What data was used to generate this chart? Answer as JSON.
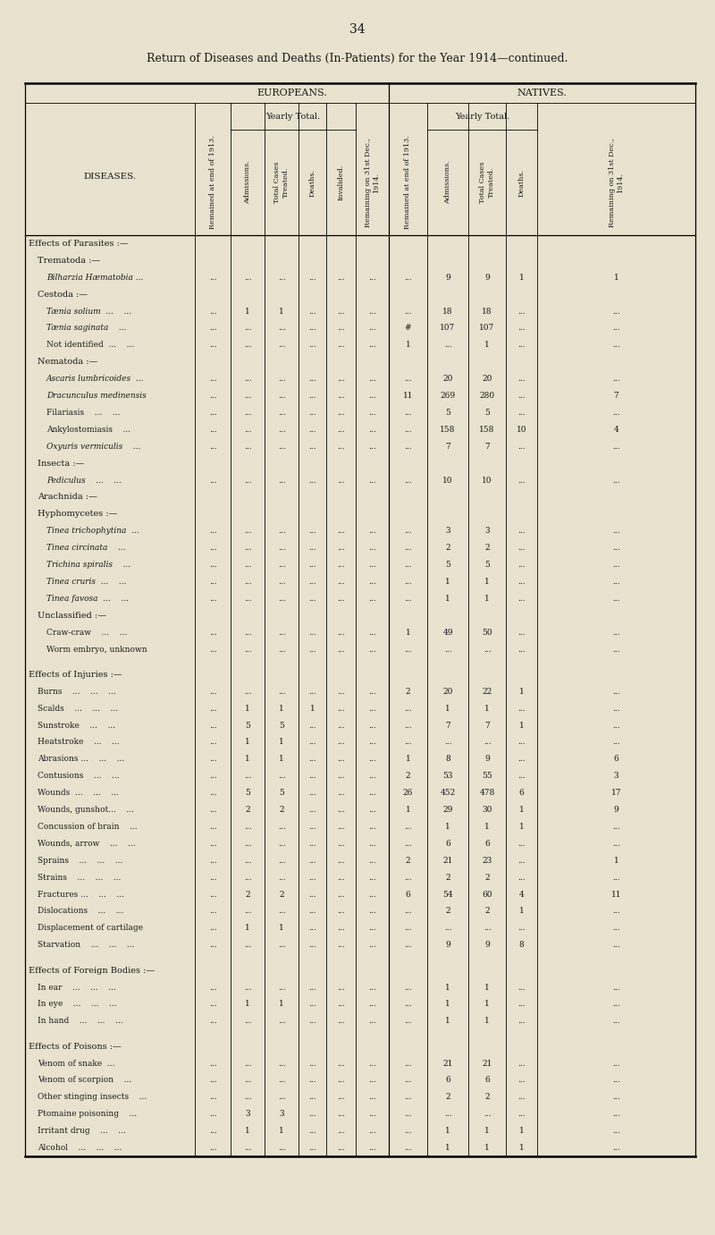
{
  "page_number": "34",
  "title": "Return of Diseases and Deaths (In-Patients) for the Year 1914—continued.",
  "bg_color": "#e8e2ce",
  "text_color": "#1a1a1a",
  "rows": [
    {
      "label": "Effects of Parasites :—",
      "indent": 0,
      "italic": false,
      "category": true,
      "spacer": false,
      "data": [
        "",
        "",
        "",
        "",
        "",
        "",
        "",
        "",
        "",
        "",
        ""
      ]
    },
    {
      "label": "Trematoda :—",
      "indent": 1,
      "italic": false,
      "category": true,
      "spacer": false,
      "data": [
        "",
        "",
        "",
        "",
        "",
        "",
        "",
        "",
        "",
        "",
        ""
      ]
    },
    {
      "label": "Bilharzia Hæmatobia ...",
      "indent": 2,
      "italic": true,
      "category": false,
      "spacer": false,
      "data": [
        "...",
        "...",
        "...",
        "...",
        "...",
        "...",
        "...",
        "9",
        "9",
        "1",
        "1"
      ]
    },
    {
      "label": "Cestoda :—",
      "indent": 1,
      "italic": false,
      "category": true,
      "spacer": false,
      "data": [
        "",
        "",
        "",
        "",
        "",
        "",
        "",
        "",
        "",
        "",
        ""
      ]
    },
    {
      "label": "Tænia solium  ...    ...",
      "indent": 2,
      "italic": true,
      "category": false,
      "spacer": false,
      "data": [
        "...",
        "1",
        "1",
        "...",
        "...",
        "...",
        "...",
        "18",
        "18",
        "...",
        "..."
      ]
    },
    {
      "label": "Tænia saginata    ...",
      "indent": 2,
      "italic": true,
      "category": false,
      "spacer": false,
      "data": [
        "...",
        "...",
        "...",
        "...",
        "...",
        "...",
        "#",
        "107",
        "107",
        "...",
        "..."
      ]
    },
    {
      "label": "Not identified  ...    ...",
      "indent": 2,
      "italic": false,
      "category": false,
      "spacer": false,
      "data": [
        "...",
        "...",
        "...",
        "...",
        "...",
        "...",
        "1",
        "...",
        "1",
        "...",
        "..."
      ]
    },
    {
      "label": "Nematoda :—",
      "indent": 1,
      "italic": false,
      "category": true,
      "spacer": false,
      "data": [
        "",
        "",
        "",
        "",
        "",
        "",
        "",
        "",
        "",
        "",
        ""
      ]
    },
    {
      "label": "Ascaris lumbricoides  ...",
      "indent": 2,
      "italic": true,
      "category": false,
      "spacer": false,
      "data": [
        "...",
        "...",
        "...",
        "...",
        "...",
        "...",
        "...",
        "20",
        "20",
        "...",
        "..."
      ]
    },
    {
      "label": "Dracunculus medinensis",
      "indent": 2,
      "italic": true,
      "category": false,
      "spacer": false,
      "data": [
        "...",
        "...",
        "...",
        "...",
        "...",
        "...",
        "11",
        "269",
        "280",
        "...",
        "7"
      ]
    },
    {
      "label": "Filariasis    ...    ...",
      "indent": 2,
      "italic": false,
      "category": false,
      "spacer": false,
      "data": [
        "...",
        "...",
        "...",
        "...",
        "...",
        "...",
        "...",
        "5",
        "5",
        "...",
        "..."
      ]
    },
    {
      "label": "Ankylostomiasis    ...",
      "indent": 2,
      "italic": false,
      "category": false,
      "spacer": false,
      "data": [
        "...",
        "...",
        "...",
        "...",
        "...",
        "...",
        "...",
        "158",
        "158",
        "10",
        "4"
      ]
    },
    {
      "label": "Oxyuris vermiculis    ...",
      "indent": 2,
      "italic": true,
      "category": false,
      "spacer": false,
      "data": [
        "...",
        "...",
        "...",
        "...",
        "...",
        "...",
        "...",
        "7",
        "7",
        "...",
        "..."
      ]
    },
    {
      "label": "Insecta :—",
      "indent": 1,
      "italic": false,
      "category": true,
      "spacer": false,
      "data": [
        "",
        "",
        "",
        "",
        "",
        "",
        "",
        "",
        "",
        "",
        ""
      ]
    },
    {
      "label": "Pediculus    ...    ...",
      "indent": 2,
      "italic": true,
      "category": false,
      "spacer": false,
      "data": [
        "...",
        "...",
        "...",
        "...",
        "...",
        "...",
        "...",
        "10",
        "10",
        "...",
        "..."
      ]
    },
    {
      "label": "Arachnida :—",
      "indent": 1,
      "italic": false,
      "category": true,
      "spacer": false,
      "data": [
        "",
        "",
        "",
        "",
        "",
        "",
        "",
        "",
        "",
        "",
        ""
      ]
    },
    {
      "label": "Hyphomycetes :—",
      "indent": 1,
      "italic": false,
      "category": true,
      "spacer": false,
      "data": [
        "",
        "",
        "",
        "",
        "",
        "",
        "",
        "",
        "",
        "",
        ""
      ]
    },
    {
      "label": "Tinea trichophytina  ...",
      "indent": 2,
      "italic": true,
      "category": false,
      "spacer": false,
      "data": [
        "...",
        "...",
        "...",
        "...",
        "...",
        "...",
        "...",
        "3",
        "3",
        "...",
        "..."
      ]
    },
    {
      "label": "Tinea circinata    ...",
      "indent": 2,
      "italic": true,
      "category": false,
      "spacer": false,
      "data": [
        "...",
        "...",
        "...",
        "...",
        "...",
        "...",
        "...",
        "2",
        "2",
        "...",
        "..."
      ]
    },
    {
      "label": "Trichina spiralis    ...",
      "indent": 2,
      "italic": true,
      "category": false,
      "spacer": false,
      "data": [
        "...",
        "...",
        "...",
        "...",
        "...",
        "...",
        "...",
        "5",
        "5",
        "...",
        "..."
      ]
    },
    {
      "label": "Tinea cruris  ...    ...",
      "indent": 2,
      "italic": true,
      "category": false,
      "spacer": false,
      "data": [
        "...",
        "...",
        "...",
        "...",
        "...",
        "...",
        "...",
        "1",
        "1",
        "...",
        "..."
      ]
    },
    {
      "label": "Tinea favosa  ...    ...",
      "indent": 2,
      "italic": true,
      "category": false,
      "spacer": false,
      "data": [
        "...",
        "...",
        "...",
        "...",
        "...",
        "...",
        "...",
        "1",
        "1",
        "...",
        "..."
      ]
    },
    {
      "label": "Unclassified :—",
      "indent": 1,
      "italic": false,
      "category": true,
      "spacer": false,
      "data": [
        "",
        "",
        "",
        "",
        "",
        "",
        "",
        "",
        "",
        "",
        ""
      ]
    },
    {
      "label": "Craw-craw    ...    ...",
      "indent": 2,
      "italic": false,
      "category": false,
      "spacer": false,
      "data": [
        "...",
        "...",
        "...",
        "...",
        "...",
        "...",
        "1",
        "49",
        "50",
        "...",
        "..."
      ]
    },
    {
      "label": "Worm embryo, unknown",
      "indent": 2,
      "italic": false,
      "category": false,
      "spacer": false,
      "data": [
        "...",
        "...",
        "...",
        "...",
        "...",
        "...",
        "...",
        "...",
        "...",
        "...",
        "..."
      ]
    },
    {
      "label": "",
      "indent": 0,
      "italic": false,
      "category": false,
      "spacer": true,
      "data": [
        "",
        "",
        "",
        "",
        "",
        "",
        "",
        "",
        "",
        "",
        ""
      ]
    },
    {
      "label": "Effects of Injuries :—",
      "indent": 0,
      "italic": false,
      "category": true,
      "spacer": false,
      "data": [
        "",
        "",
        "",
        "",
        "",
        "",
        "",
        "",
        "",
        "",
        ""
      ]
    },
    {
      "label": "Burns    ...    ...    ...",
      "indent": 1,
      "italic": false,
      "category": false,
      "spacer": false,
      "data": [
        "...",
        "...",
        "...",
        "...",
        "...",
        "...",
        "2",
        "20",
        "22",
        "1",
        "..."
      ]
    },
    {
      "label": "Scalds    ...    ...    ...",
      "indent": 1,
      "italic": false,
      "category": false,
      "spacer": false,
      "data": [
        "...",
        "1",
        "1",
        "1",
        "...",
        "...",
        "...",
        "1",
        "1",
        "...",
        "..."
      ]
    },
    {
      "label": "Sunstroke    ...    ...",
      "indent": 1,
      "italic": false,
      "category": false,
      "spacer": false,
      "data": [
        "...",
        "5",
        "5",
        "...",
        "...",
        "...",
        "...",
        "7",
        "7",
        "1",
        "..."
      ]
    },
    {
      "label": "Heatstroke    ...    ...",
      "indent": 1,
      "italic": false,
      "category": false,
      "spacer": false,
      "data": [
        "...",
        "1",
        "1",
        "...",
        "...",
        "...",
        "...",
        "...",
        "...",
        "...",
        "..."
      ]
    },
    {
      "label": "Abrasions ...    ...    ...",
      "indent": 1,
      "italic": false,
      "category": false,
      "spacer": false,
      "data": [
        "...",
        "1",
        "1",
        "...",
        "...",
        "...",
        "1",
        "8",
        "9",
        "...",
        "6"
      ]
    },
    {
      "label": "Contusions    ...    ...",
      "indent": 1,
      "italic": false,
      "category": false,
      "spacer": false,
      "data": [
        "...",
        "...",
        "...",
        "...",
        "...",
        "...",
        "2",
        "53",
        "55",
        "...",
        "3"
      ]
    },
    {
      "label": "Wounds  ...    ...    ...",
      "indent": 1,
      "italic": false,
      "category": false,
      "spacer": false,
      "data": [
        "...",
        "5",
        "5",
        "...",
        "...",
        "...",
        "26",
        "452",
        "478",
        "6",
        "17"
      ]
    },
    {
      "label": "Wounds, gunshot...    ...",
      "indent": 1,
      "italic": false,
      "category": false,
      "spacer": false,
      "data": [
        "...",
        "2",
        "2",
        "...",
        "...",
        "...",
        "1",
        "29",
        "30",
        "1",
        "9"
      ]
    },
    {
      "label": "Concussion of brain    ...",
      "indent": 1,
      "italic": false,
      "category": false,
      "spacer": false,
      "data": [
        "...",
        "...",
        "...",
        "...",
        "...",
        "...",
        "...",
        "1",
        "1",
        "1",
        "..."
      ]
    },
    {
      "label": "Wounds, arrow    ...    ...",
      "indent": 1,
      "italic": false,
      "category": false,
      "spacer": false,
      "data": [
        "...",
        "...",
        "...",
        "...",
        "...",
        "...",
        "...",
        "6",
        "6",
        "...",
        "..."
      ]
    },
    {
      "label": "Sprains    ...    ...    ...",
      "indent": 1,
      "italic": false,
      "category": false,
      "spacer": false,
      "data": [
        "...",
        "...",
        "...",
        "...",
        "...",
        "...",
        "2",
        "21",
        "23",
        "...",
        "1"
      ]
    },
    {
      "label": "Strains    ...    ...    ...",
      "indent": 1,
      "italic": false,
      "category": false,
      "spacer": false,
      "data": [
        "...",
        "...",
        "...",
        "...",
        "...",
        "...",
        "...",
        "2",
        "2",
        "...",
        "..."
      ]
    },
    {
      "label": "Fractures ...    ...    ...",
      "indent": 1,
      "italic": false,
      "category": false,
      "spacer": false,
      "data": [
        "...",
        "2",
        "2",
        "...",
        "...",
        "...",
        "6",
        "54",
        "60",
        "4",
        "11"
      ]
    },
    {
      "label": "Dislocations    ...    ...",
      "indent": 1,
      "italic": false,
      "category": false,
      "spacer": false,
      "data": [
        "...",
        "...",
        "...",
        "...",
        "...",
        "...",
        "...",
        "2",
        "2",
        "1",
        "..."
      ]
    },
    {
      "label": "Displacement of cartilage",
      "indent": 1,
      "italic": false,
      "category": false,
      "spacer": false,
      "data": [
        "...",
        "1",
        "1",
        "...",
        "...",
        "...",
        "...",
        "...",
        "...",
        "...",
        "..."
      ]
    },
    {
      "label": "Starvation    ...    ...    ...",
      "indent": 1,
      "italic": false,
      "category": false,
      "spacer": false,
      "data": [
        "...",
        "...",
        "...",
        "...",
        "...",
        "...",
        "...",
        "9",
        "9",
        "8",
        "..."
      ]
    },
    {
      "label": "",
      "indent": 0,
      "italic": false,
      "category": false,
      "spacer": true,
      "data": [
        "",
        "",
        "",
        "",
        "",
        "",
        "",
        "",
        "",
        "",
        ""
      ]
    },
    {
      "label": "Effects of Foreign Bodies :—",
      "indent": 0,
      "italic": false,
      "category": true,
      "spacer": false,
      "data": [
        "",
        "",
        "",
        "",
        "",
        "",
        "",
        "",
        "",
        "",
        ""
      ]
    },
    {
      "label": "In ear    ...    ...    ...",
      "indent": 1,
      "italic": false,
      "category": false,
      "spacer": false,
      "data": [
        "...",
        "...",
        "...",
        "...",
        "...",
        "...",
        "...",
        "1",
        "1",
        "...",
        "..."
      ]
    },
    {
      "label": "In eye    ...    ...    ...",
      "indent": 1,
      "italic": false,
      "category": false,
      "spacer": false,
      "data": [
        "...",
        "1",
        "1",
        "...",
        "...",
        "...",
        "...",
        "1",
        "1",
        "...",
        "..."
      ]
    },
    {
      "label": "In hand    ...    ...    ...",
      "indent": 1,
      "italic": false,
      "category": false,
      "spacer": false,
      "data": [
        "...",
        "...",
        "...",
        "...",
        "...",
        "...",
        "...",
        "1",
        "1",
        "...",
        "..."
      ]
    },
    {
      "label": "",
      "indent": 0,
      "italic": false,
      "category": false,
      "spacer": true,
      "data": [
        "",
        "",
        "",
        "",
        "",
        "",
        "",
        "",
        "",
        "",
        ""
      ]
    },
    {
      "label": "Effects of Poisons :—",
      "indent": 0,
      "italic": false,
      "category": true,
      "spacer": false,
      "data": [
        "",
        "",
        "",
        "",
        "",
        "",
        "",
        "",
        "",
        "",
        ""
      ]
    },
    {
      "label": "Venom of snake  ...",
      "indent": 1,
      "italic": false,
      "category": false,
      "spacer": false,
      "data": [
        "...",
        "...",
        "...",
        "...",
        "...",
        "...",
        "...",
        "21",
        "21",
        "...",
        "..."
      ]
    },
    {
      "label": "Venom of scorpion    ...",
      "indent": 1,
      "italic": false,
      "category": false,
      "spacer": false,
      "data": [
        "...",
        "...",
        "...",
        "...",
        "...",
        "...",
        "...",
        "6",
        "6",
        "...",
        "..."
      ]
    },
    {
      "label": "Other stinging insects    ...",
      "indent": 1,
      "italic": false,
      "category": false,
      "spacer": false,
      "data": [
        "...",
        "...",
        "...",
        "...",
        "...",
        "...",
        "...",
        "2",
        "2",
        "...",
        "..."
      ]
    },
    {
      "label": "Ptomaine poisoning    ...",
      "indent": 1,
      "italic": false,
      "category": false,
      "spacer": false,
      "data": [
        "...",
        "3",
        "3",
        "...",
        "...",
        "...",
        "...",
        "...",
        "...",
        "...",
        "..."
      ]
    },
    {
      "label": "Irritant drug    ...    ...",
      "indent": 1,
      "italic": false,
      "category": false,
      "spacer": false,
      "data": [
        "...",
        "1",
        "1",
        "...",
        "...",
        "...",
        "...",
        "1",
        "1",
        "1",
        "..."
      ]
    },
    {
      "label": "Alcohol    ...    ...    ...",
      "indent": 1,
      "italic": false,
      "category": false,
      "spacer": false,
      "data": [
        "...",
        "...",
        "...",
        "...",
        "...",
        "...",
        "...",
        "1",
        "1",
        "1",
        "..."
      ]
    }
  ]
}
